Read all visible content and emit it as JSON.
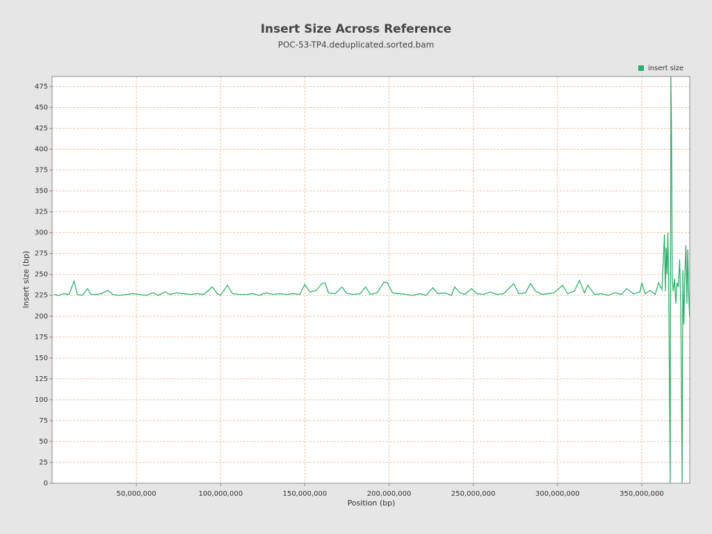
{
  "chart_data": {
    "type": "line",
    "title": "Insert Size Across Reference",
    "subtitle": "POC-53-TP4.deduplicated.sorted.bam",
    "x_label": "Position (bp)",
    "y_label": "Insert size (bp)",
    "legend_position": "top-right",
    "grid": true,
    "xlim": [
      0,
      378500000
    ],
    "ylim": [
      0,
      487
    ],
    "xticks": [
      {
        "value": 50000000,
        "label": "50,000,000"
      },
      {
        "value": 100000000,
        "label": "100,000,000"
      },
      {
        "value": 150000000,
        "label": "150,000,000"
      },
      {
        "value": 200000000,
        "label": "200,000,000"
      },
      {
        "value": 250000000,
        "label": "250,000,000"
      },
      {
        "value": 300000000,
        "label": "300,000,000"
      },
      {
        "value": 350000000,
        "label": "350,000,000"
      }
    ],
    "yticks": [
      0,
      25,
      50,
      75,
      100,
      125,
      150,
      175,
      200,
      225,
      250,
      275,
      300,
      325,
      350,
      375,
      400,
      425,
      450,
      475
    ],
    "series": [
      {
        "name": "insert size",
        "color": "#2eaf6a",
        "x": [
          1000000,
          4000000,
          7000000,
          10000000,
          13000000,
          15000000,
          18000000,
          21000000,
          23000000,
          26000000,
          29000000,
          33000000,
          36000000,
          40000000,
          44000000,
          48000000,
          52000000,
          56000000,
          60000000,
          63000000,
          67000000,
          70000000,
          74000000,
          78000000,
          82000000,
          86000000,
          90000000,
          95000000,
          98000000,
          100000000,
          104000000,
          107000000,
          111000000,
          115000000,
          119000000,
          123000000,
          127000000,
          131000000,
          135000000,
          139000000,
          143000000,
          147000000,
          150000000,
          153000000,
          157000000,
          160000000,
          162000000,
          164000000,
          168000000,
          172000000,
          175000000,
          179000000,
          183000000,
          186000000,
          189000000,
          193000000,
          197000000,
          199000000,
          202000000,
          206000000,
          210000000,
          214000000,
          218000000,
          222000000,
          226000000,
          229000000,
          233000000,
          237000000,
          239000000,
          242000000,
          245000000,
          249000000,
          252000000,
          256000000,
          260000000,
          264000000,
          268000000,
          271000000,
          274000000,
          277000000,
          281000000,
          284000000,
          287000000,
          291000000,
          294000000,
          298000000,
          303000000,
          306000000,
          310000000,
          313000000,
          316000000,
          318000000,
          322000000,
          326000000,
          330000000,
          334000000,
          338000000,
          341000000,
          345000000,
          349000000,
          350000000,
          352000000,
          355000000,
          358000000,
          360000000,
          362000000,
          363500000,
          364000000,
          364500000,
          365000000,
          365500000,
          366000000,
          366900000,
          367300000,
          367700000,
          368100000,
          368700000,
          369500000,
          370200000,
          371000000,
          371700000,
          372500000,
          373200000,
          374000000,
          374400000,
          375000000,
          375600000,
          376200000,
          376800000,
          377300000,
          377900000,
          378400000
        ],
        "values": [
          226,
          225,
          227,
          226,
          242,
          226,
          225,
          233,
          226,
          226,
          227,
          231,
          226,
          225,
          226,
          227,
          226,
          225,
          228,
          225,
          229,
          226,
          228,
          227,
          226,
          227,
          226,
          235,
          227,
          225,
          237,
          227,
          226,
          226,
          227,
          225,
          228,
          226,
          227,
          226,
          227,
          226,
          238,
          229,
          231,
          239,
          240,
          228,
          227,
          235,
          227,
          226,
          227,
          235,
          226,
          228,
          241,
          240,
          228,
          227,
          226,
          225,
          227,
          225,
          234,
          227,
          228,
          225,
          235,
          228,
          226,
          233,
          227,
          226,
          229,
          226,
          227,
          233,
          239,
          227,
          228,
          239,
          230,
          226,
          227,
          228,
          237,
          227,
          230,
          243,
          228,
          237,
          226,
          227,
          225,
          228,
          226,
          233,
          227,
          229,
          240,
          227,
          231,
          226,
          240,
          232,
          298,
          230,
          282,
          250,
          300,
          240,
          0,
          487,
          415,
          245,
          230,
          245,
          215,
          240,
          235,
          268,
          210,
          0,
          255,
          190,
          250,
          285,
          215,
          280,
          225,
          200
        ]
      }
    ]
  }
}
